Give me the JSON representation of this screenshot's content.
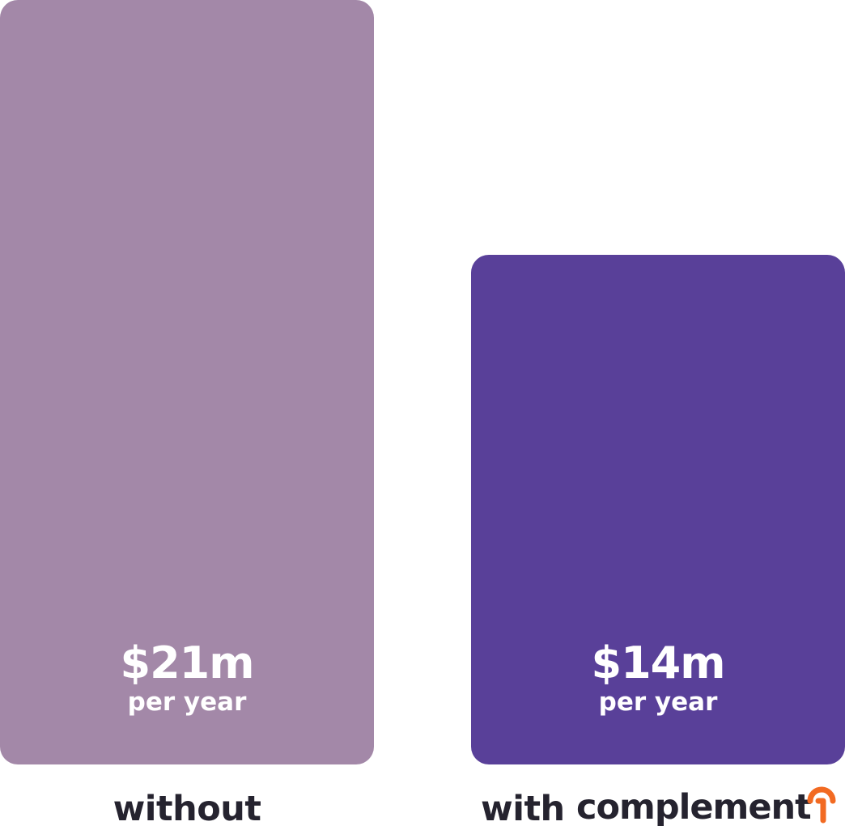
{
  "chart_data": {
    "type": "bar",
    "categories": [
      "without",
      "with"
    ],
    "values": [
      21,
      14
    ],
    "value_labels": [
      "$21m",
      "$14m"
    ],
    "unit_label": "per year",
    "brand_name": "complement",
    "colors": [
      "#a388a8",
      "#594099"
    ],
    "brand_icon_color": "#f26a22",
    "ylim": [
      0,
      21
    ],
    "grid": false,
    "legend": "none"
  }
}
